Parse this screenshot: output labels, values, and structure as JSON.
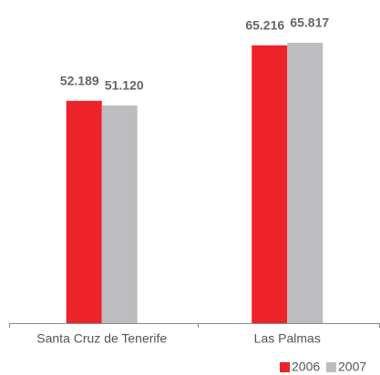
{
  "chart_data": {
    "type": "bar",
    "categories": [
      "Santa Cruz de Tenerife",
      "Las Palmas"
    ],
    "series": [
      {
        "name": "2006",
        "color": "#ee2229",
        "values": [
          52189,
          65216
        ],
        "value_labels": [
          "52.189",
          "65.216"
        ]
      },
      {
        "name": "2007",
        "color": "#bdbdbf",
        "values": [
          51120,
          65817
        ],
        "value_labels": [
          "51.120",
          "65.817"
        ]
      }
    ],
    "legend": "bottom-right"
  }
}
